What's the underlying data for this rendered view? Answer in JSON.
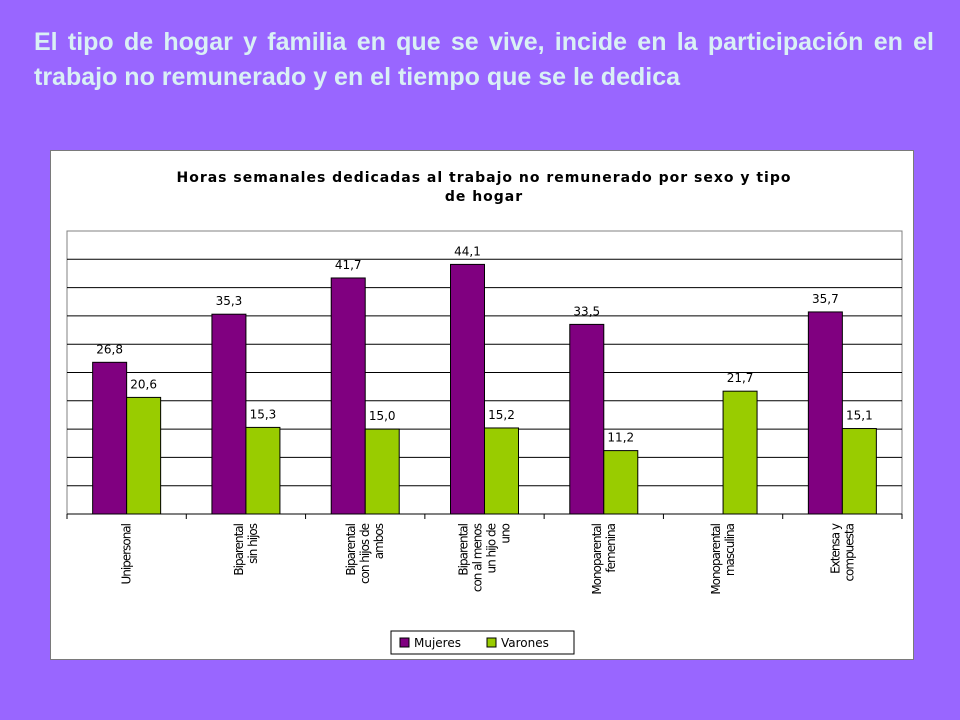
{
  "slide": {
    "title": "El tipo de hogar y familia en que se vive, incide en la participación en el trabajo no remunerado y en el tiempo que se le dedica"
  },
  "colors": {
    "background": "#9966ff",
    "title_text": "#d9f0f5",
    "mujeres": "#800080",
    "varones": "#99cc00"
  },
  "chart_data": {
    "type": "bar",
    "title_lines": [
      "Horas semanales dedicadas al trabajo no remunerado por sexo y tipo",
      "de hogar"
    ],
    "categories": [
      [
        "Unipersonal"
      ],
      [
        "Biparental",
        "sin hijos"
      ],
      [
        "Biparental",
        "con hijos de",
        "ambos"
      ],
      [
        "Biparental",
        "con al menos",
        "un hijo de",
        "uno"
      ],
      [
        "Monoparental",
        "femenina"
      ],
      [
        "Monoparental",
        "masculina"
      ],
      [
        "Extensa y",
        "compuesta"
      ]
    ],
    "series": [
      {
        "name": "Mujeres",
        "values": [
          26.8,
          35.3,
          41.7,
          44.1,
          33.5,
          null,
          35.7
        ],
        "labels": [
          "26,8",
          "35,3",
          "41,7",
          "44,1",
          "33,5",
          "",
          "35,7"
        ]
      },
      {
        "name": "Varones",
        "values": [
          20.6,
          15.3,
          15.0,
          15.2,
          11.2,
          21.7,
          15.1
        ],
        "labels": [
          "20,6",
          "15,3",
          "15,0",
          "15,2",
          "11,2",
          "21,7",
          "15,1"
        ]
      }
    ],
    "ylim": [
      0,
      50
    ],
    "grid": true,
    "legend_position": "bottom"
  }
}
